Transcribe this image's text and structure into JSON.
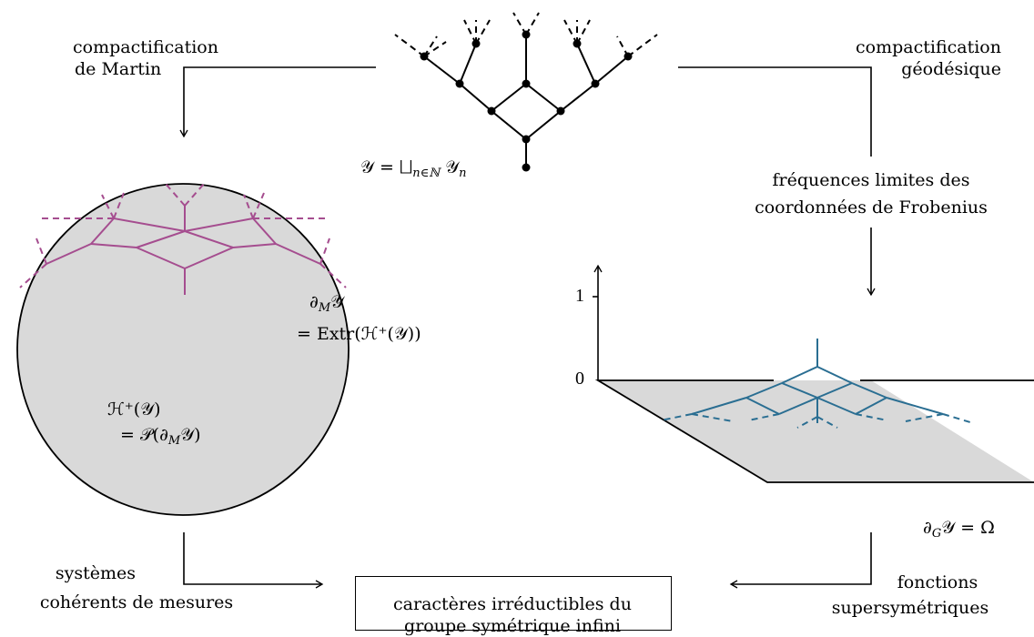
{
  "labels": {
    "top_left": [
      "compactification",
      "de Martin"
    ],
    "top_right": [
      "compactification",
      "géodésique"
    ],
    "tree_def": {
      "script_y": "𝒴",
      "eq": "=",
      "union": "⨆",
      "index": "n∈ℕ",
      "sub_n": "n"
    },
    "mid_right": [
      "fréquences limites des",
      "coordonnées de Frobenius"
    ],
    "martin_boundary": {
      "partial": "∂",
      "sub": "M",
      "script_y": "𝒴",
      "line2": "= Extr(ℋ⁺(𝒴))"
    },
    "harmonic": {
      "line1": "ℋ⁺(𝒴)",
      "line2": "= 𝒫(∂",
      "sub": "M",
      "line2_end": "𝒴)"
    },
    "geodesic_boundary": {
      "partial": "∂",
      "sub": "G",
      "rest": "𝒴 = Ω"
    },
    "bottom_left": [
      "systèmes",
      "cohérents de mesures"
    ],
    "bottom_center": [
      "caractères irréductibles du",
      "groupe symétrique infini"
    ],
    "bottom_right": [
      "fonctions",
      "supersymétriques"
    ],
    "axis_ticks": {
      "one": "1",
      "zero": "0"
    }
  },
  "colors": {
    "line": "#000000",
    "disk_fill": "#d9d9d9",
    "plane_fill": "#d9d9d9",
    "martin_tree": "#a54d8f",
    "geodesic_tree": "#2a6e92"
  }
}
